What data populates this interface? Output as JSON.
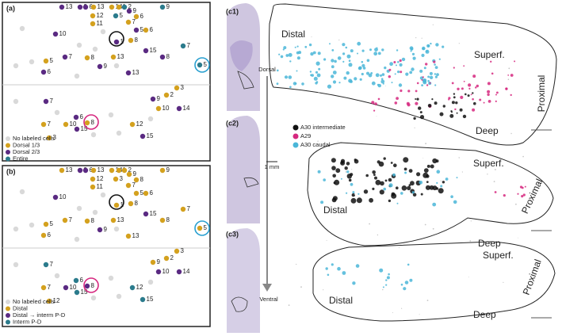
{
  "panel_a": {
    "label": "(a)",
    "colors": [
      "#d9d9d9",
      "#d4a11e",
      "#5a2a82",
      "#2b7b8c"
    ],
    "legend": [
      "No labeled cells",
      "Dorsal 1/3",
      "Dorsal 2/3",
      "Entire"
    ],
    "points": [
      {
        "text": "13",
        "group": 2
      },
      {
        "text": "9",
        "group": 2
      },
      {
        "text": "6",
        "group": 2
      },
      {
        "text": "13",
        "group": 1
      },
      {
        "text": "14",
        "group": 1
      },
      {
        "text": "1",
        "group": 1
      },
      {
        "text": "2",
        "group": 3
      },
      {
        "text": "9",
        "group": 2
      },
      {
        "text": "9",
        "group": 3
      },
      {
        "text": "12",
        "group": 1
      },
      {
        "text": "5",
        "group": 3
      },
      {
        "text": "6",
        "group": 1
      },
      {
        "text": "11",
        "group": 1
      },
      {
        "text": "7",
        "group": 1
      },
      {
        "text": "5",
        "group": 2
      },
      {
        "text": "6",
        "group": 1
      },
      {
        "text": "10",
        "group": 2
      },
      {
        "text": "1",
        "group": 2
      },
      {
        "text": "8",
        "group": 1
      },
      {
        "text": "7",
        "group": 3
      },
      {
        "text": "15",
        "group": 2
      },
      {
        "text": "5",
        "group": 1
      },
      {
        "text": "8",
        "group": 1
      },
      {
        "text": "13",
        "group": 1
      },
      {
        "text": "8",
        "group": 2
      },
      {
        "text": "5",
        "group": 3
      },
      {
        "text": "7",
        "group": 2
      },
      {
        "text": "9",
        "group": 2
      },
      {
        "text": "13",
        "group": 2
      },
      {
        "text": "6",
        "group": 2
      },
      {
        "text": "3",
        "group": 1
      },
      {
        "text": "2",
        "group": 1
      },
      {
        "text": "9",
        "group": 2
      },
      {
        "text": "10",
        "group": 1
      },
      {
        "text": "14",
        "group": 2
      },
      {
        "text": "7",
        "group": 2
      },
      {
        "text": "7",
        "group": 1
      },
      {
        "text": "10",
        "group": 1
      },
      {
        "text": "15",
        "group": 2
      },
      {
        "text": "6",
        "group": 2
      },
      {
        "text": "8",
        "group": 1
      },
      {
        "text": "15",
        "group": 2
      },
      {
        "text": "12",
        "group": 1
      },
      {
        "text": "3",
        "group": 1
      }
    ]
  },
  "panel_b": {
    "label": "(b)",
    "colors": [
      "#d9d9d9",
      "#d4a11e",
      "#5a2a82",
      "#2b7b8c"
    ],
    "legend": [
      "No labeled cells",
      "Distal",
      "Distal → interm P-D",
      "Interm P-D"
    ],
    "points": [
      {
        "text": "13",
        "group": 1
      },
      {
        "text": "9",
        "group": 2
      },
      {
        "text": "6",
        "group": 2
      },
      {
        "text": "13",
        "group": 1
      },
      {
        "text": "14",
        "group": 1
      },
      {
        "text": "1",
        "group": 1
      },
      {
        "text": "2",
        "group": 1
      },
      {
        "text": "9",
        "group": 1
      },
      {
        "text": "9",
        "group": 1
      },
      {
        "text": "12",
        "group": 1
      },
      {
        "text": "3",
        "group": 1
      },
      {
        "text": "8",
        "group": 1
      },
      {
        "text": "11",
        "group": 1
      },
      {
        "text": "7",
        "group": 1
      },
      {
        "text": "5",
        "group": 1
      },
      {
        "text": "6",
        "group": 1
      },
      {
        "text": "10",
        "group": 2
      },
      {
        "text": "1",
        "group": 1
      },
      {
        "text": "8",
        "group": 1
      },
      {
        "text": "7",
        "group": 1
      },
      {
        "text": "15",
        "group": 2
      },
      {
        "text": "5",
        "group": 1
      },
      {
        "text": "8",
        "group": 1
      },
      {
        "text": "13",
        "group": 1
      },
      {
        "text": "8",
        "group": 1
      },
      {
        "text": "5",
        "group": 1
      },
      {
        "text": "7",
        "group": 1
      },
      {
        "text": "9",
        "group": 2
      },
      {
        "text": "13",
        "group": 1
      },
      {
        "text": "6",
        "group": 1
      },
      {
        "text": "3",
        "group": 1
      },
      {
        "text": "2",
        "group": 1
      },
      {
        "text": "9",
        "group": 1
      },
      {
        "text": "10",
        "group": 2
      },
      {
        "text": "14",
        "group": 2
      },
      {
        "text": "7",
        "group": 3
      },
      {
        "text": "7",
        "group": 1
      },
      {
        "text": "10",
        "group": 2
      },
      {
        "text": "15",
        "group": 3
      },
      {
        "text": "6",
        "group": 3
      },
      {
        "text": "8",
        "group": 2
      },
      {
        "text": "15",
        "group": 3
      },
      {
        "text": "12",
        "group": 3
      },
      {
        "text": "12",
        "group": 1
      }
    ]
  },
  "panel_c": {
    "labels": [
      "(c1)",
      "(c2)",
      "(c3)"
    ],
    "scale": "1 mm",
    "dorsal": "Dorsal",
    "ventral": "Ventral",
    "legend": [
      "A30 intermediate",
      "A29",
      "A30 caudal"
    ],
    "legend_colors": [
      "#111111",
      "#d6287f",
      "#4ab6d8"
    ],
    "sections": [
      {
        "distal": "Distal",
        "superficial": "Superf.",
        "proximal": "Proximal",
        "deep": "Deep"
      },
      {
        "distal": "Distal",
        "superficial": "Superf.",
        "proximal": "Proximal",
        "deep": "Deep"
      },
      {
        "distal": "Distal",
        "superficial": "Superf.",
        "proximal": "Proximal",
        "deep": "Deep"
      }
    ]
  }
}
